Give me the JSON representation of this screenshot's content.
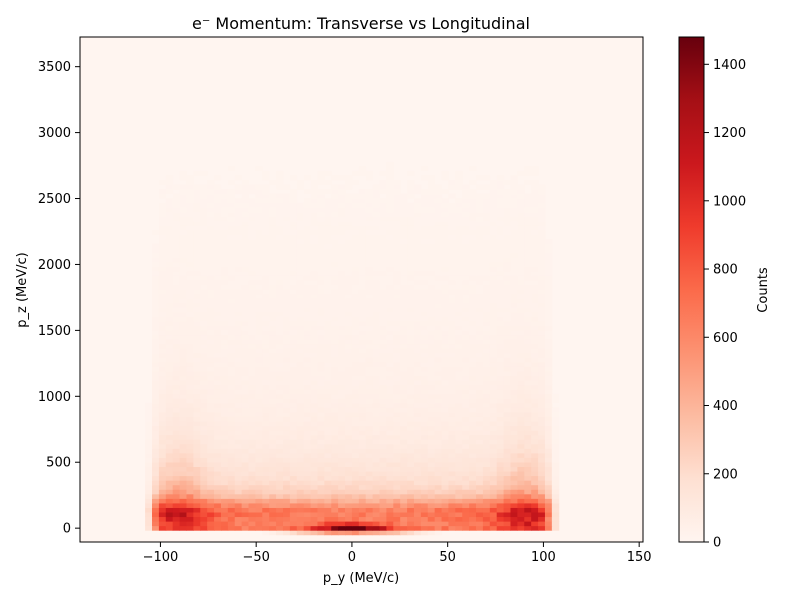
{
  "chart_data": {
    "type": "heatmap",
    "title": "e⁻ Momentum: Transverse vs Longitudinal",
    "xlabel": "p_y (MeV/c)",
    "ylabel": "p_z (MeV/c)",
    "xlim": [
      -142,
      152
    ],
    "ylim": [
      -105,
      3725
    ],
    "x_ticks": [
      -100,
      -50,
      0,
      50,
      100,
      150
    ],
    "y_ticks": [
      0,
      500,
      1000,
      1500,
      2000,
      2500,
      3000,
      3500
    ],
    "grid": false,
    "colormap": "Reds",
    "colorbar": {
      "label": "Counts",
      "min": 0,
      "max": 1480,
      "ticks": [
        0,
        200,
        400,
        600,
        800,
        1000,
        1200,
        1400
      ]
    },
    "x_bin_range": [
      -108,
      108
    ],
    "y_bin_range": [
      -50,
      3400
    ],
    "features": {
      "peak_count": 1480,
      "peak_location": [
        0,
        0
      ],
      "edge_band_count": 900,
      "edge_band_pz": [
        0,
        250
      ]
    }
  }
}
